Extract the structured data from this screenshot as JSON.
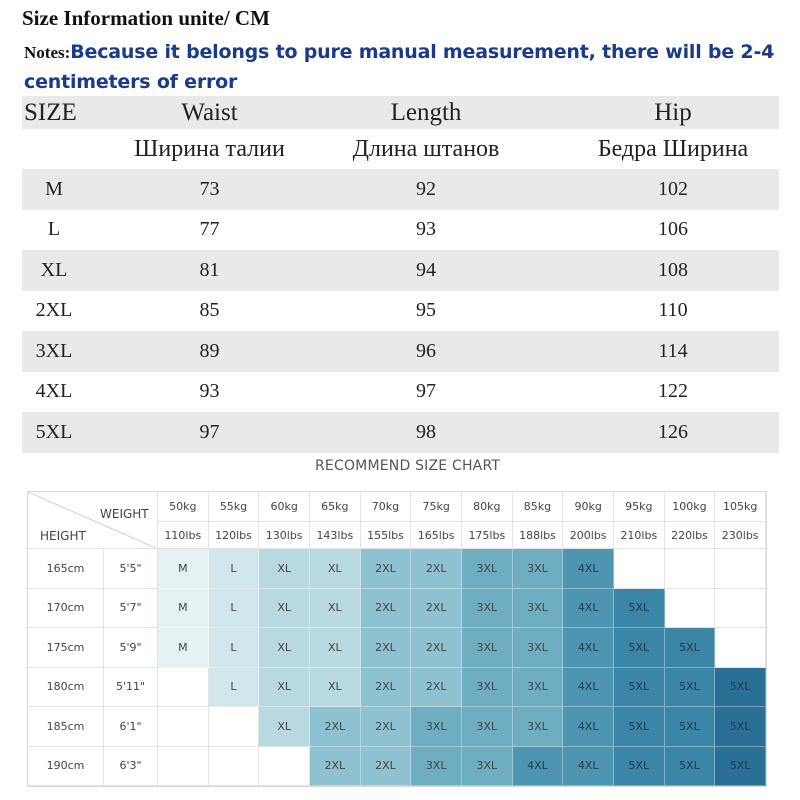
{
  "header": {
    "title": "Size Information unite/ CM",
    "notes_label": "Notes:",
    "notes_text": "Because it belongs to pure manual measurement, there will be 2-4 centimeters of error"
  },
  "size_table": {
    "headers": {
      "size": "SIZE",
      "waist": "Waist",
      "length": "Length",
      "hip": "Hip"
    },
    "headers_ru": {
      "waist": "Ширина талии",
      "length": "Длина штанов",
      "hip": "Бедра Ширина"
    },
    "rows": [
      {
        "size": "M",
        "waist": "73",
        "length": "92",
        "hip": "102"
      },
      {
        "size": "L",
        "waist": "77",
        "length": "93",
        "hip": "106"
      },
      {
        "size": "XL",
        "waist": "81",
        "length": "94",
        "hip": "108"
      },
      {
        "size": "2XL",
        "waist": "85",
        "length": "95",
        "hip": "110"
      },
      {
        "size": "3XL",
        "waist": "89",
        "length": "96",
        "hip": "114"
      },
      {
        "size": "4XL",
        "waist": "93",
        "length": "97",
        "hip": "122"
      },
      {
        "size": "5XL",
        "waist": "97",
        "length": "98",
        "hip": "126"
      }
    ]
  },
  "recommend_chart": {
    "title": "RECOMMEND SIZE CHART",
    "weight_label": "WEIGHT",
    "height_label": "HEIGHT",
    "weights_kg": [
      "50kg",
      "55kg",
      "60kg",
      "65kg",
      "70kg",
      "75kg",
      "80kg",
      "85kg",
      "90kg",
      "95kg",
      "100kg",
      "105kg"
    ],
    "weights_lbs": [
      "110lbs",
      "120lbs",
      "130lbs",
      "143lbs",
      "155lbs",
      "165lbs",
      "175lbs",
      "188lbs",
      "200lbs",
      "210lbs",
      "220lbs",
      "230lbs"
    ],
    "rows": [
      {
        "cm": "165cm",
        "ft": "5'5\"",
        "sizes": [
          "M",
          "L",
          "XL",
          "XL",
          "2XL",
          "2XL",
          "3XL",
          "3XL",
          "4XL",
          "",
          "",
          ""
        ]
      },
      {
        "cm": "170cm",
        "ft": "5'7\"",
        "sizes": [
          "M",
          "L",
          "XL",
          "XL",
          "2XL",
          "2XL",
          "3XL",
          "3XL",
          "4XL",
          "5XL",
          "",
          ""
        ]
      },
      {
        "cm": "175cm",
        "ft": "5'9\"",
        "sizes": [
          "M",
          "L",
          "XL",
          "XL",
          "2XL",
          "2XL",
          "3XL",
          "3XL",
          "4XL",
          "5XL",
          "5XL",
          ""
        ]
      },
      {
        "cm": "180cm",
        "ft": "5'11\"",
        "sizes": [
          "",
          "L",
          "XL",
          "XL",
          "2XL",
          "2XL",
          "3XL",
          "3XL",
          "4XL",
          "5XL",
          "5XL",
          "5XL"
        ]
      },
      {
        "cm": "185cm",
        "ft": "6'1\"",
        "sizes": [
          "",
          "",
          "XL",
          "2XL",
          "2XL",
          "3XL",
          "3XL",
          "3XL",
          "4XL",
          "5XL",
          "5XL",
          "5XL"
        ]
      },
      {
        "cm": "190cm",
        "ft": "6'3\"",
        "sizes": [
          "",
          "",
          "",
          "2XL",
          "2XL",
          "3XL",
          "3XL",
          "4XL",
          "4XL",
          "5XL",
          "5XL",
          "5XL"
        ]
      }
    ],
    "size_colors": {
      "M": "#e6f1f4",
      "L": "#d2e7ec",
      "XL": "#b9d9e1",
      "2XL": "#8fc2d1",
      "3XL": "#6fadc1",
      "4XL": "#4d95b0",
      "5XL": "#3b85a6"
    },
    "dark_size_colors": {
      "5XL": "#2a6f95"
    }
  }
}
